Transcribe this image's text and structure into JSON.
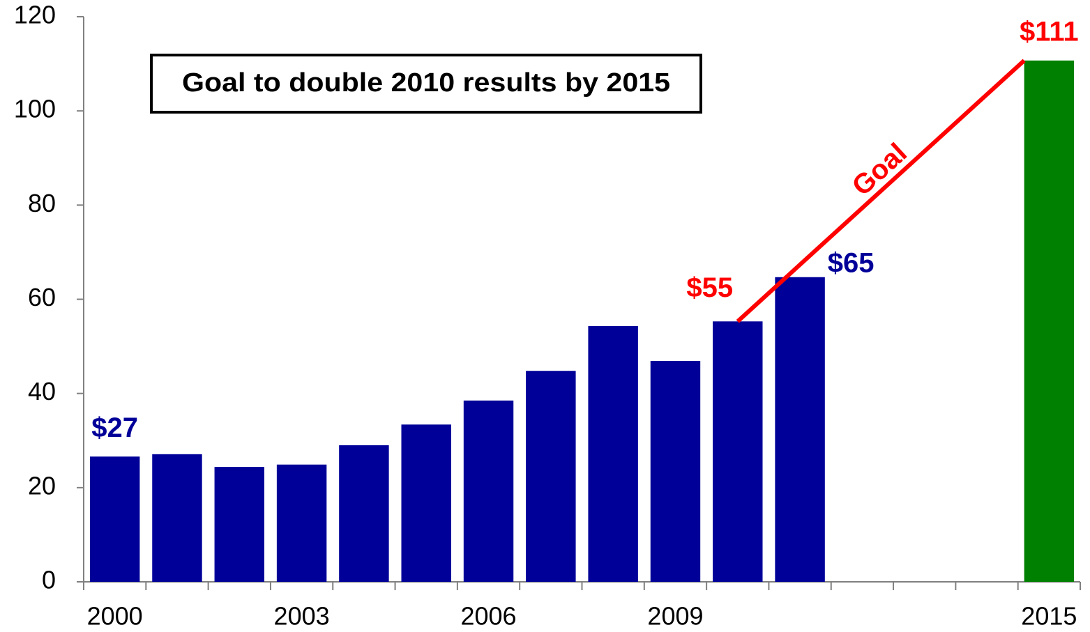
{
  "chart_data": {
    "type": "bar",
    "title": "Goal to double 2010 results by 2015",
    "categories": [
      "2000",
      null,
      null,
      "2003",
      null,
      null,
      "2006",
      null,
      null,
      "2009",
      null,
      null,
      null,
      null,
      null,
      "2015"
    ],
    "values": [
      26.6,
      27.1,
      24.4,
      24.9,
      29.0,
      33.4,
      38.5,
      44.8,
      54.3,
      46.9,
      55.3,
      64.7,
      null,
      null,
      null,
      110.7
    ],
    "colors": [
      "#000099",
      "#000099",
      "#000099",
      "#000099",
      "#000099",
      "#000099",
      "#000099",
      "#000099",
      "#000099",
      "#000099",
      "#000099",
      "#000099",
      null,
      null,
      null,
      "#008000"
    ],
    "value_labels": [
      "$27",
      null,
      null,
      null,
      null,
      null,
      null,
      null,
      null,
      null,
      "$55",
      "$65",
      null,
      null,
      null,
      "$111"
    ],
    "value_label_colors": [
      "#000099",
      null,
      null,
      null,
      null,
      null,
      null,
      null,
      null,
      null,
      "#ff0000",
      "#000099",
      null,
      null,
      null,
      "#ff0000"
    ],
    "goal": {
      "label": "Goal",
      "color": "#ff0000"
    },
    "ylim": [
      0,
      120
    ],
    "yticks": [
      0,
      20,
      40,
      60,
      80,
      100,
      120
    ],
    "grid": false
  }
}
